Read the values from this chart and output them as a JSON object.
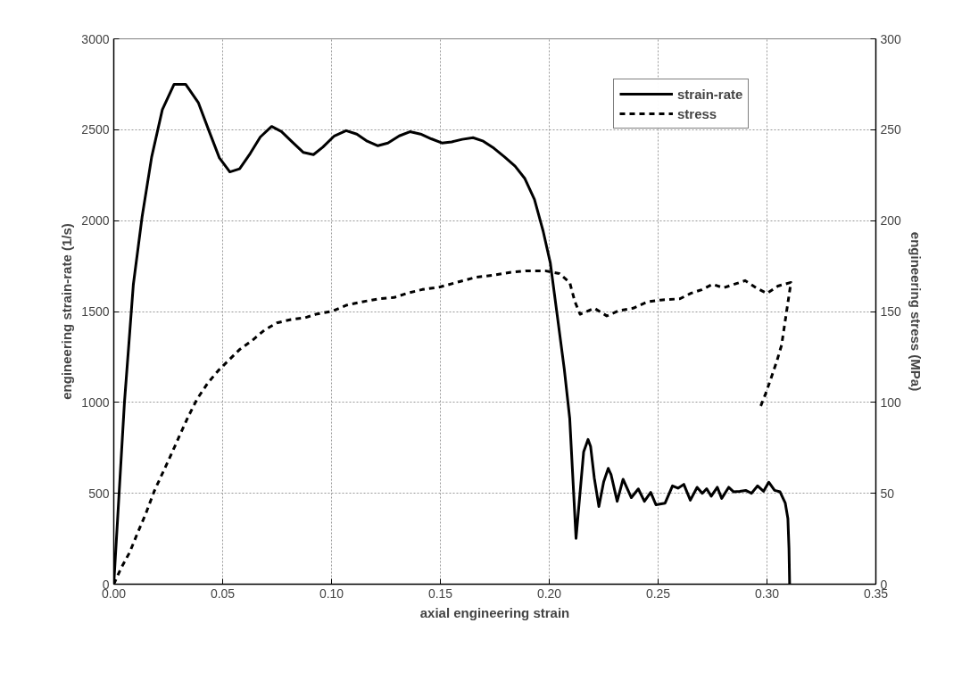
{
  "chart_data": {
    "type": "line",
    "xlabel": "axial engineering strain",
    "ylabel": "engineering strain-rate (1/s)",
    "y2label": "engineering stress (MPa)",
    "xlim": [
      0,
      0.35
    ],
    "xticks": [
      {
        "value": 0,
        "label": "0.00"
      },
      {
        "value": 0.05,
        "label": "0.05"
      },
      {
        "value": 0.1,
        "label": "0.10"
      },
      {
        "value": 0.15,
        "label": "0.15"
      },
      {
        "value": 0.2,
        "label": "0.20"
      },
      {
        "value": 0.25,
        "label": "0.25"
      },
      {
        "value": 0.3,
        "label": "0.30"
      },
      {
        "value": 0.35,
        "label": "0.35"
      }
    ],
    "ylim": [
      0,
      3000
    ],
    "yticks": [
      0,
      500,
      1000,
      1500,
      2000,
      2500,
      3000
    ],
    "y2lim": [
      0,
      300
    ],
    "y2ticks": [
      0,
      50,
      100,
      150,
      200,
      250,
      300
    ],
    "grid": true,
    "legend": "top right",
    "series": [
      {
        "name": "strain-rate",
        "color": "#000000",
        "line_style": "solid",
        "x": [
          0,
          0.0049,
          0.009,
          0.013,
          0.0174,
          0.0223,
          0.0277,
          0.033,
          0.0388,
          0.044,
          0.0485,
          0.0533,
          0.0578,
          0.0627,
          0.0673,
          0.0725,
          0.077,
          0.0822,
          0.0871,
          0.0917,
          0.096,
          0.1013,
          0.1067,
          0.1116,
          0.1164,
          0.1213,
          0.1259,
          0.1311,
          0.136,
          0.1409,
          0.1458,
          0.1507,
          0.1552,
          0.16,
          0.165,
          0.1697,
          0.1746,
          0.1795,
          0.1843,
          0.1887,
          0.1932,
          0.1972,
          0.2005,
          0.2037,
          0.2069,
          0.2094,
          0.2123,
          0.2158,
          0.2178,
          0.219,
          0.2207,
          0.2228,
          0.225,
          0.2271,
          0.2284,
          0.2312,
          0.2339,
          0.2377,
          0.2409,
          0.2437,
          0.2466,
          0.249,
          0.2532,
          0.2566,
          0.2591,
          0.2618,
          0.2648,
          0.2679,
          0.2703,
          0.2723,
          0.2744,
          0.2772,
          0.2792,
          0.2824,
          0.2847,
          0.2875,
          0.2902,
          0.2929,
          0.2957,
          0.2984,
          0.3008,
          0.3035,
          0.306,
          0.3084,
          0.3096,
          0.3101,
          0.3104
        ],
        "values": [
          0,
          1000,
          1650,
          2020,
          2350,
          2610,
          2750,
          2750,
          2650,
          2485,
          2345,
          2268,
          2285,
          2370,
          2460,
          2518,
          2490,
          2430,
          2375,
          2363,
          2404,
          2466,
          2495,
          2476,
          2437,
          2412,
          2427,
          2466,
          2489,
          2476,
          2450,
          2427,
          2433,
          2447,
          2456,
          2437,
          2398,
          2350,
          2300,
          2233,
          2117,
          1942,
          1767,
          1476,
          1184,
          912,
          252,
          728,
          796,
          757,
          583,
          427,
          563,
          637,
          602,
          456,
          577,
          476,
          524,
          456,
          505,
          437,
          446,
          541,
          528,
          549,
          462,
          533,
          500,
          525,
          484,
          533,
          472,
          533,
          508,
          511,
          516,
          500,
          541,
          511,
          561,
          516,
          508,
          446,
          361,
          197,
          0
        ]
      },
      {
        "name": "stress",
        "color": "#000000",
        "line_style": "dashed",
        "axis": "y2",
        "x": [
          0,
          0.0033,
          0.0073,
          0.0106,
          0.0147,
          0.0187,
          0.0228,
          0.0269,
          0.0309,
          0.0342,
          0.0383,
          0.0432,
          0.048,
          0.0529,
          0.0578,
          0.0635,
          0.0692,
          0.0749,
          0.0814,
          0.0879,
          0.0928,
          0.1002,
          0.1067,
          0.114,
          0.1213,
          0.1287,
          0.1352,
          0.1417,
          0.1498,
          0.1592,
          0.1665,
          0.1738,
          0.1819,
          0.1892,
          0.1981,
          0.2046,
          0.2094,
          0.2118,
          0.2142,
          0.2207,
          0.2264,
          0.2321,
          0.2385,
          0.245,
          0.251,
          0.26,
          0.265,
          0.27,
          0.275,
          0.28,
          0.285,
          0.29,
          0.295,
          0.3,
          0.305,
          0.311,
          0.309,
          0.3067,
          0.3045,
          0.3019,
          0.2994,
          0.2966
        ],
        "values": [
          0,
          8.7,
          17.5,
          27.2,
          38.8,
          51.5,
          62.1,
          72.8,
          83.5,
          92.2,
          101.9,
          110.7,
          117.5,
          123.3,
          129.1,
          134,
          139.8,
          143.7,
          145.6,
          146.6,
          148.5,
          150.1,
          153.4,
          155.3,
          156.9,
          157.7,
          160.2,
          162.1,
          163.5,
          166.6,
          168.9,
          169.9,
          171.5,
          172.4,
          172.4,
          170.9,
          166,
          155.3,
          148.5,
          151.8,
          147.6,
          150.5,
          151.8,
          155.3,
          156.3,
          157,
          160,
          162,
          165,
          163,
          165,
          167,
          163,
          160,
          164,
          166,
          150,
          131.5,
          122.6,
          113.4,
          104.9,
          96.4
        ]
      }
    ]
  }
}
